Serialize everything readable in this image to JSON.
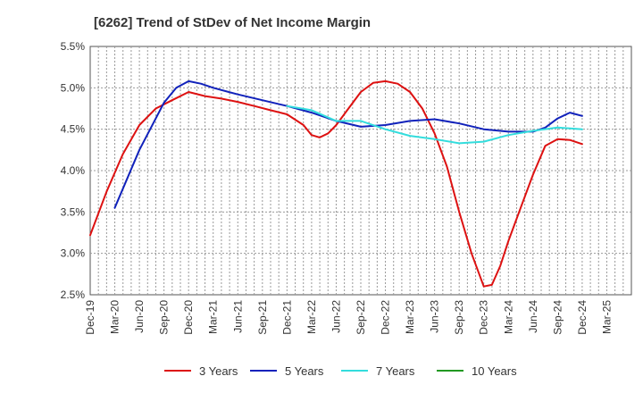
{
  "chart_data": {
    "type": "line",
    "title": "[6262]  Trend of StDev of Net Income Margin",
    "xlabel": "",
    "ylabel": "",
    "ylim": [
      2.5,
      5.5
    ],
    "yticks": [
      "2.5%",
      "3.0%",
      "3.5%",
      "4.0%",
      "4.5%",
      "5.0%",
      "5.5%"
    ],
    "x_range": [
      0,
      22
    ],
    "x_ticks": [
      "Dec-19",
      "Mar-20",
      "Jun-20",
      "Sep-20",
      "Dec-20",
      "Mar-21",
      "Jun-21",
      "Sep-21",
      "Dec-21",
      "Mar-22",
      "Jun-22",
      "Sep-22",
      "Dec-22",
      "Mar-23",
      "Jun-23",
      "Sep-23",
      "Dec-23",
      "Mar-24",
      "Jun-24",
      "Sep-24",
      "Dec-24",
      "Mar-25"
    ],
    "grid": true,
    "legend_position": "bottom",
    "series": [
      {
        "name": "3 Years",
        "color": "#dd1111",
        "points": [
          [
            0,
            3.22
          ],
          [
            0.67,
            3.75
          ],
          [
            1.33,
            4.2
          ],
          [
            2,
            4.55
          ],
          [
            2.67,
            4.75
          ],
          [
            3.33,
            4.85
          ],
          [
            4,
            4.95
          ],
          [
            4.67,
            4.9
          ],
          [
            5.33,
            4.87
          ],
          [
            6,
            4.83
          ],
          [
            6.67,
            4.78
          ],
          [
            7.33,
            4.73
          ],
          [
            8,
            4.68
          ],
          [
            8.67,
            4.55
          ],
          [
            9,
            4.43
          ],
          [
            9.33,
            4.4
          ],
          [
            9.67,
            4.45
          ],
          [
            10,
            4.55
          ],
          [
            10.5,
            4.75
          ],
          [
            11,
            4.95
          ],
          [
            11.5,
            5.06
          ],
          [
            12,
            5.08
          ],
          [
            12.5,
            5.05
          ],
          [
            13,
            4.95
          ],
          [
            13.5,
            4.75
          ],
          [
            14,
            4.45
          ],
          [
            14.5,
            4.05
          ],
          [
            15,
            3.5
          ],
          [
            15.5,
            3.0
          ],
          [
            16,
            2.6
          ],
          [
            16.33,
            2.62
          ],
          [
            16.67,
            2.85
          ],
          [
            17,
            3.15
          ],
          [
            17.5,
            3.55
          ],
          [
            18,
            3.95
          ],
          [
            18.5,
            4.3
          ],
          [
            19,
            4.38
          ],
          [
            19.5,
            4.37
          ],
          [
            20,
            4.32
          ]
        ]
      },
      {
        "name": "5 Years",
        "color": "#1122bb",
        "points": [
          [
            1,
            3.55
          ],
          [
            2,
            4.25
          ],
          [
            3,
            4.82
          ],
          [
            3.5,
            5.0
          ],
          [
            4,
            5.08
          ],
          [
            4.5,
            5.05
          ],
          [
            5,
            5.0
          ],
          [
            6,
            4.92
          ],
          [
            7,
            4.85
          ],
          [
            8,
            4.78
          ],
          [
            9,
            4.7
          ],
          [
            10,
            4.6
          ],
          [
            11,
            4.53
          ],
          [
            12,
            4.55
          ],
          [
            13,
            4.6
          ],
          [
            14,
            4.62
          ],
          [
            15,
            4.57
          ],
          [
            16,
            4.5
          ],
          [
            17,
            4.47
          ],
          [
            18,
            4.47
          ],
          [
            18.5,
            4.52
          ],
          [
            19,
            4.63
          ],
          [
            19.5,
            4.7
          ],
          [
            20,
            4.66
          ]
        ]
      },
      {
        "name": "7 Years",
        "color": "#33dddd",
        "points": [
          [
            8,
            4.78
          ],
          [
            9,
            4.73
          ],
          [
            10,
            4.6
          ],
          [
            11,
            4.6
          ],
          [
            12,
            4.5
          ],
          [
            13,
            4.42
          ],
          [
            14,
            4.38
          ],
          [
            15,
            4.33
          ],
          [
            16,
            4.35
          ],
          [
            17,
            4.43
          ],
          [
            18,
            4.48
          ],
          [
            19,
            4.52
          ],
          [
            20,
            4.5
          ]
        ]
      },
      {
        "name": "10 Years",
        "color": "#229922",
        "points": []
      }
    ]
  }
}
